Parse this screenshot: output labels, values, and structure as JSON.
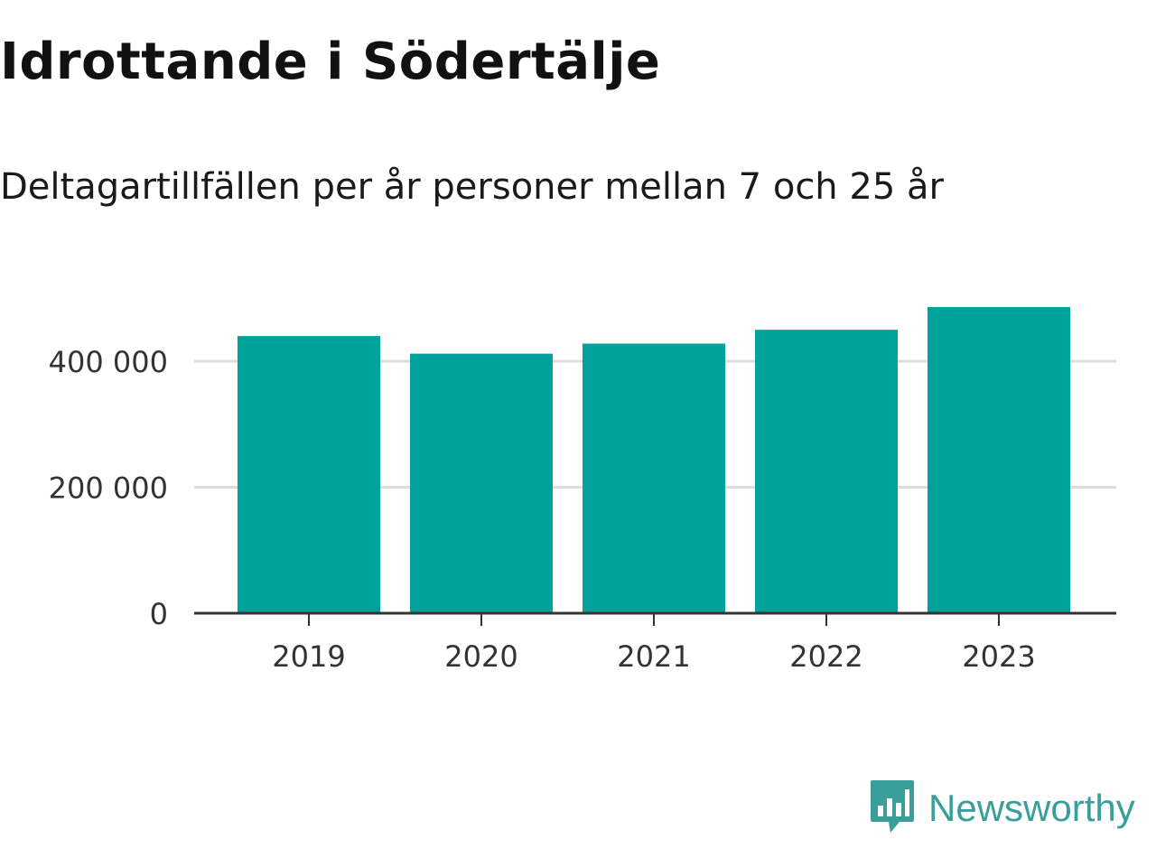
{
  "header": {
    "title": "Idrottande i Södertälje",
    "subtitle": "Deltagartillfällen per år personer mellan 7 och 25 år"
  },
  "brand": {
    "name": "Newsworthy",
    "icon": "newsworthy-logo-icon",
    "color": "#3a9e9a"
  },
  "colors": {
    "bar": "#00a39a",
    "grid": "#dddddd",
    "axis": "#333333"
  },
  "chart_data": {
    "type": "bar",
    "categories": [
      "2019",
      "2020",
      "2021",
      "2022",
      "2023"
    ],
    "values": [
      440000,
      412000,
      428000,
      450000,
      486000
    ],
    "ylim": [
      0,
      500000
    ],
    "yticks": [
      0,
      200000,
      400000
    ],
    "ytick_labels": [
      "0",
      "200 000",
      "400 000"
    ],
    "grid": true,
    "legend": "none"
  }
}
